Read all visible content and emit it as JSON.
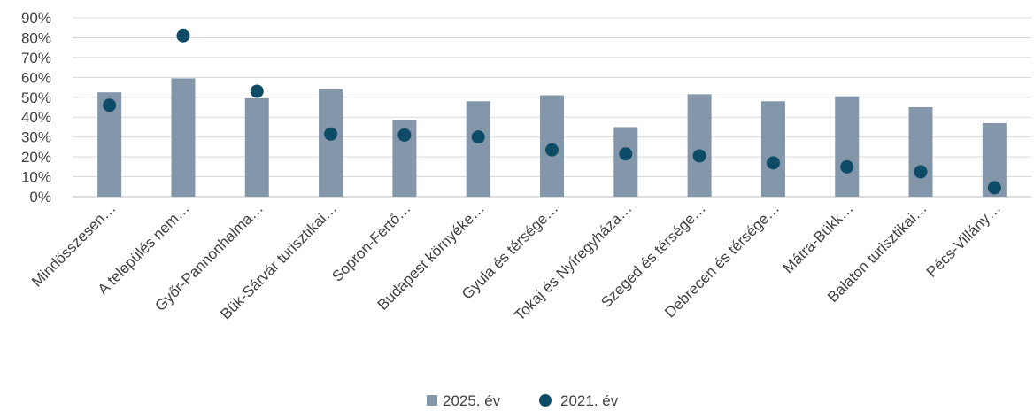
{
  "chart_data": {
    "type": "bar",
    "categories": [
      "Mindösszesen…",
      "A település nem…",
      "Győr-Pannonhalma…",
      "Bük-Sárvár turisztikai…",
      "Sopron-Fertő…",
      "Budapest környéke…",
      "Gyula és térsége…",
      "Tokaj és Nyíregyháza…",
      "Szeged és térsége…",
      "Debrecen és térsége…",
      "Mátra-Bükk…",
      "Balaton turisztikai…",
      "Pécs-Villány…"
    ],
    "series": [
      {
        "name": "2025. év",
        "kind": "bar",
        "color": "#8497aa",
        "values": [
          52.5,
          59.5,
          49.5,
          54,
          38.5,
          48,
          51,
          35,
          51.5,
          48,
          50.5,
          45,
          37
        ]
      },
      {
        "name": "2021. év",
        "kind": "marker",
        "color": "#0e4b66",
        "values": [
          46,
          81,
          53,
          31.5,
          31,
          30,
          23.5,
          21.5,
          20.5,
          17,
          15,
          12.5,
          4.5
        ]
      }
    ],
    "ylim": [
      0,
      90
    ],
    "yticks": [
      "0%",
      "10%",
      "20%",
      "30%",
      "40%",
      "50%",
      "60%",
      "70%",
      "80%",
      "90%"
    ],
    "grid": true,
    "legend_position": "bottom-center"
  }
}
